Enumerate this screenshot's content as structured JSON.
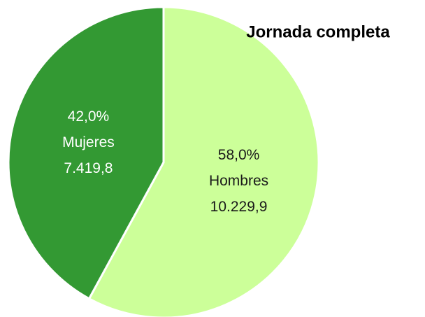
{
  "chart_data": {
    "type": "pie",
    "title": "Jornada completa",
    "categories": [
      "Hombres",
      "Mujeres"
    ],
    "values": [
      10229.9,
      7419.8
    ],
    "value_labels": [
      "10.229,9",
      "7.419,8"
    ],
    "percentages": [
      58.0,
      42.0
    ],
    "percent_labels": [
      "58,0%",
      "42,0%"
    ],
    "colors": [
      "#ccff99",
      "#339933"
    ]
  }
}
